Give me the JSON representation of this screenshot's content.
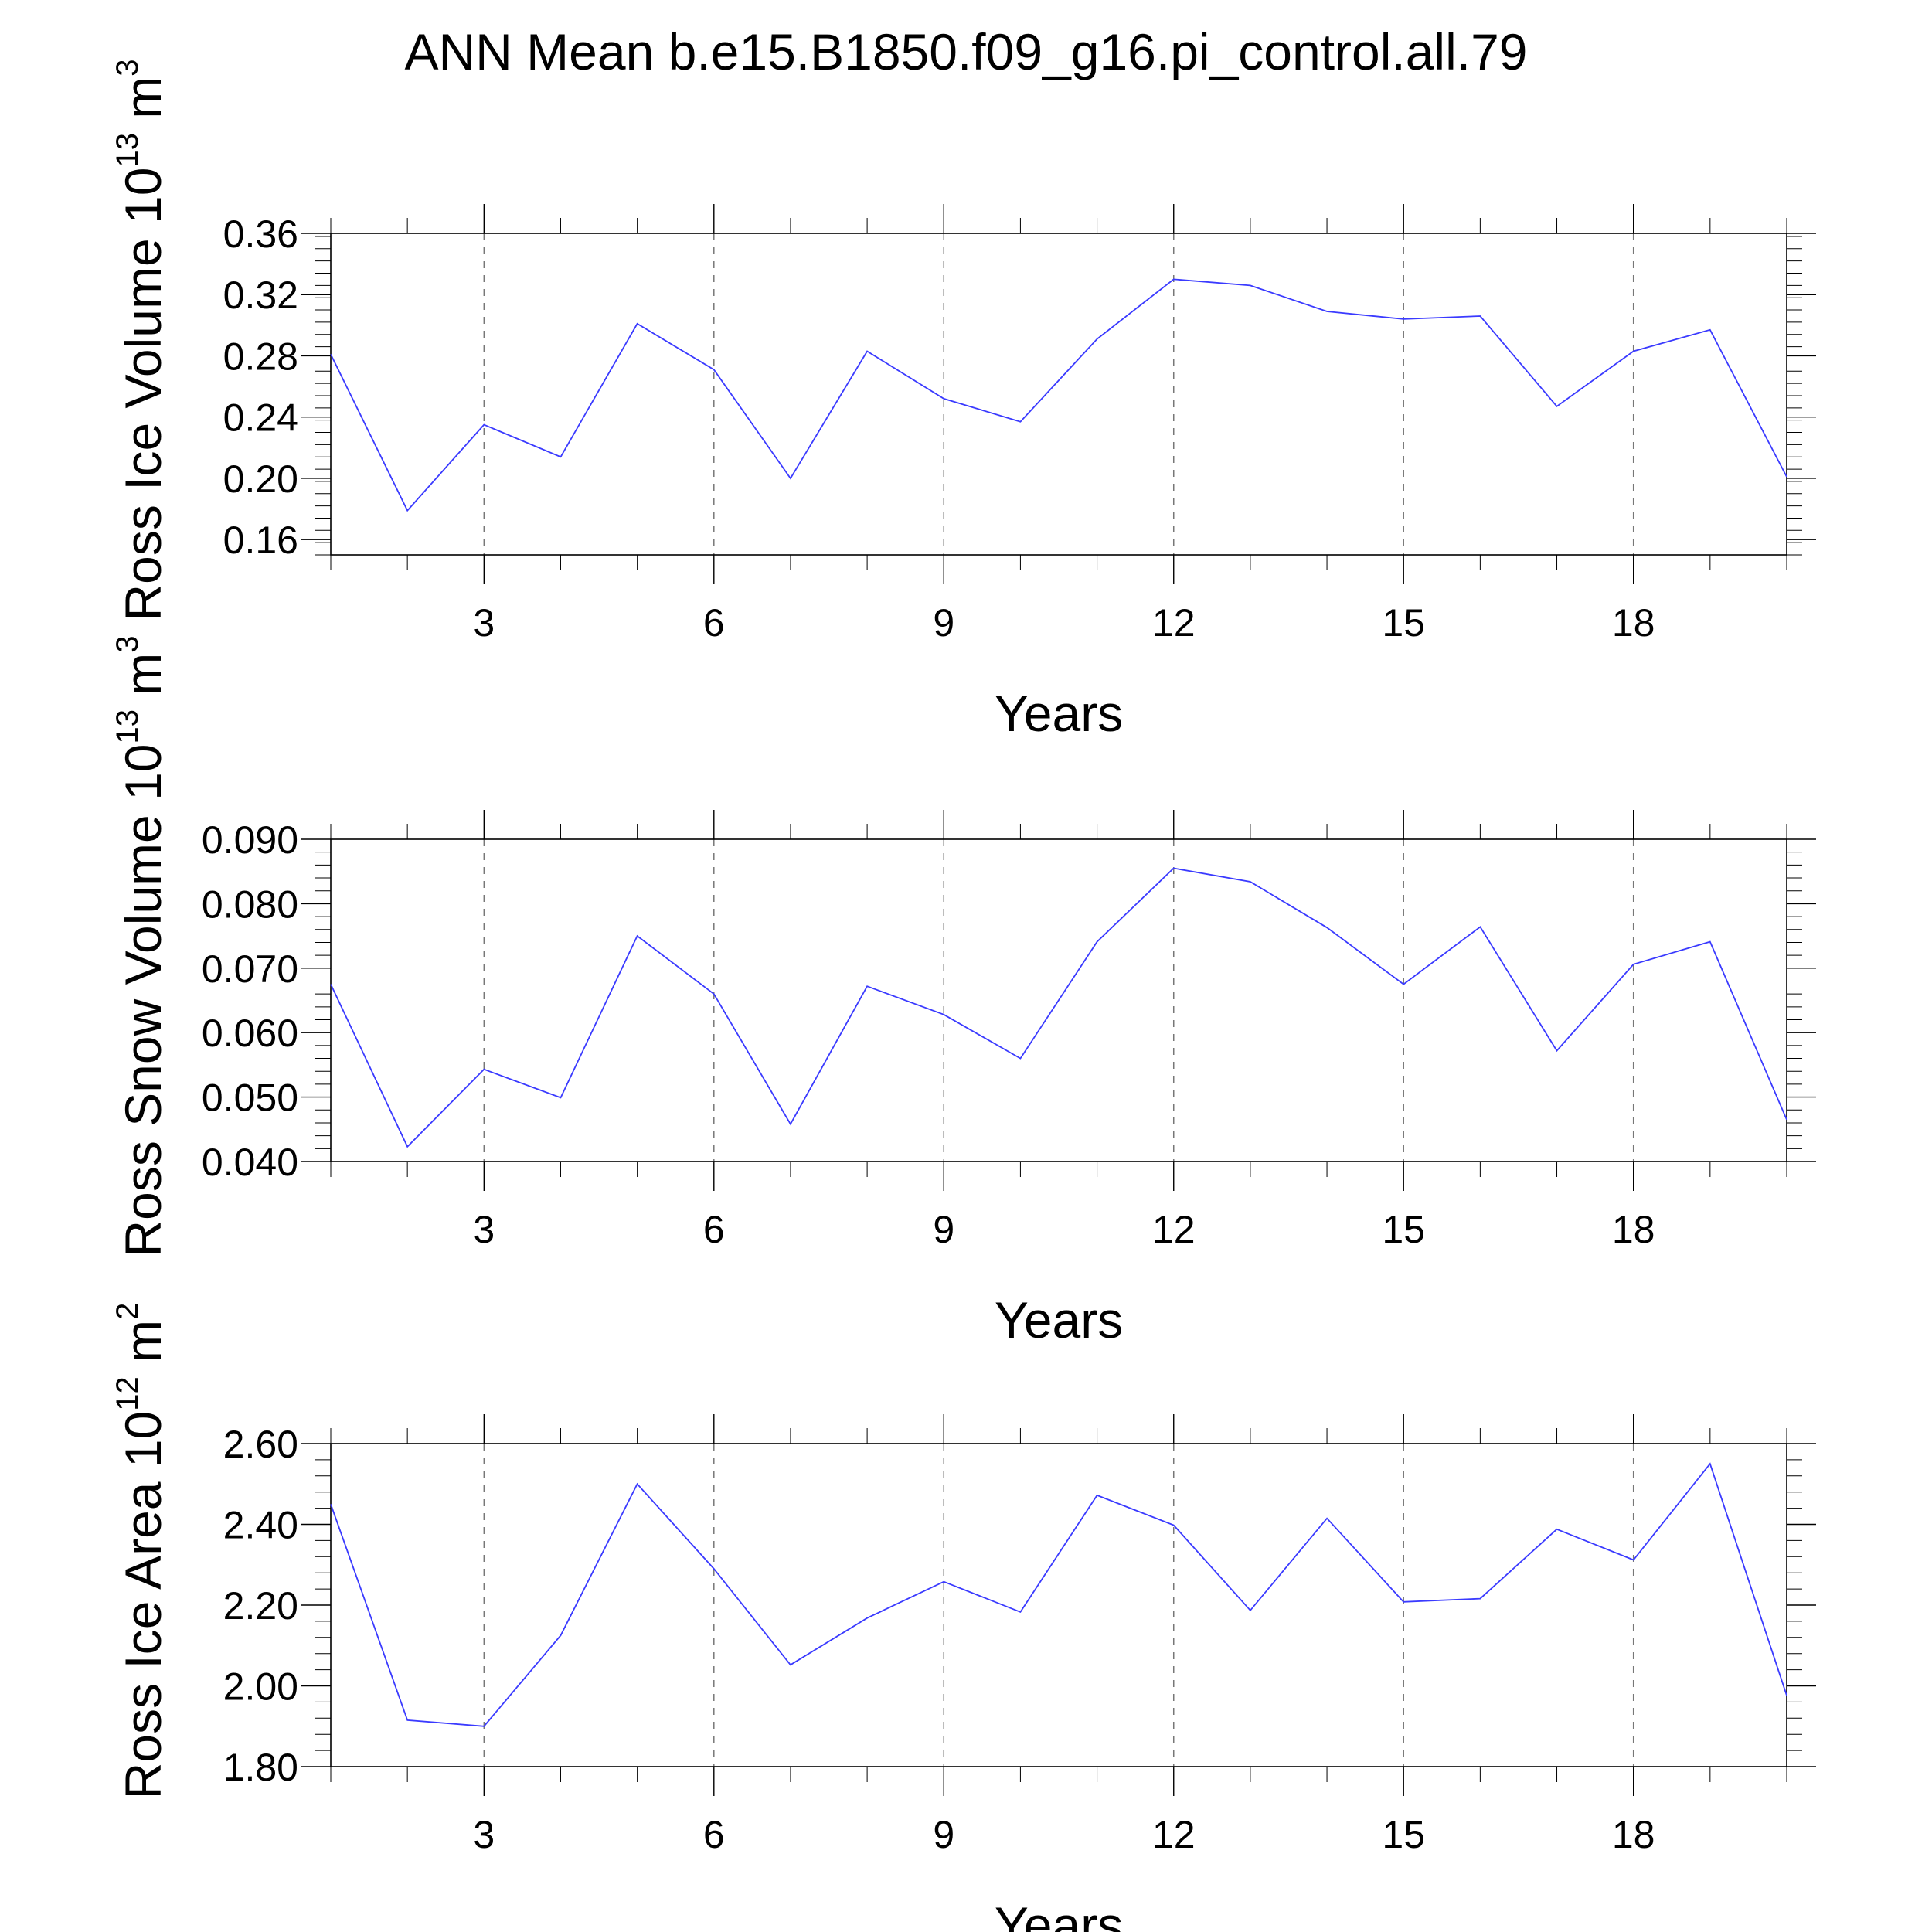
{
  "chart_data": [
    {
      "type": "line",
      "title": "ANN Mean b.e15.B1850.f09_g16.pi_control.all.79",
      "ylabel": "Ross Ice Volume 10",
      "yunit_exp": "13",
      "yunit_base": "m",
      "yunit_pow": "3",
      "xlabel": "Years",
      "xlim": [
        1,
        20
      ],
      "ylim": [
        0.15,
        0.36
      ],
      "yticks": [
        "0.16",
        "0.20",
        "0.24",
        "0.28",
        "0.32",
        "0.36"
      ],
      "xticks": [
        "3",
        "6",
        "9",
        "12",
        "15",
        "18"
      ],
      "x": [
        1,
        2,
        3,
        4,
        5,
        6,
        7,
        8,
        9,
        10,
        11,
        12,
        13,
        14,
        15,
        16,
        17,
        18,
        19,
        20
      ],
      "series": [
        {
          "name": "Ross Ice Volume",
          "color": "#3a3aff",
          "values": [
            0.281,
            0.179,
            0.235,
            0.214,
            0.301,
            0.271,
            0.2,
            0.283,
            0.252,
            0.237,
            0.291,
            0.33,
            0.326,
            0.309,
            0.304,
            0.306,
            0.247,
            0.283,
            0.297,
            0.201
          ]
        }
      ]
    },
    {
      "type": "line",
      "ylabel": "Ross Snow Volume 10",
      "yunit_exp": "13",
      "yunit_base": "m",
      "yunit_pow": "3",
      "xlabel": "Years",
      "xlim": [
        1,
        20
      ],
      "ylim": [
        0.04,
        0.09
      ],
      "yticks": [
        "0.040",
        "0.050",
        "0.060",
        "0.070",
        "0.080",
        "0.090"
      ],
      "xticks": [
        "3",
        "6",
        "9",
        "12",
        "15",
        "18"
      ],
      "x": [
        1,
        2,
        3,
        4,
        5,
        6,
        7,
        8,
        9,
        10,
        11,
        12,
        13,
        14,
        15,
        16,
        17,
        18,
        19,
        20
      ],
      "series": [
        {
          "name": "Ross Snow Volume",
          "color": "#3a3aff",
          "values": [
            0.0675,
            0.0423,
            0.0543,
            0.0499,
            0.075,
            0.066,
            0.0458,
            0.0672,
            0.0628,
            0.056,
            0.0741,
            0.0855,
            0.0834,
            0.0763,
            0.0675,
            0.0764,
            0.0572,
            0.0706,
            0.0741,
            0.0465
          ]
        }
      ]
    },
    {
      "type": "line",
      "ylabel": "Ross Ice Area 10",
      "yunit_exp": "12",
      "yunit_base": "m",
      "yunit_pow": "2",
      "xlabel": "Years",
      "xlim": [
        1,
        20
      ],
      "ylim": [
        1.8,
        2.6
      ],
      "yticks": [
        "1.80",
        "2.00",
        "2.20",
        "2.40",
        "2.60"
      ],
      "xticks": [
        "3",
        "6",
        "9",
        "12",
        "15",
        "18"
      ],
      "x": [
        1,
        2,
        3,
        4,
        5,
        6,
        7,
        8,
        9,
        10,
        11,
        12,
        13,
        14,
        15,
        16,
        17,
        18,
        19,
        20
      ],
      "series": [
        {
          "name": "Ross Ice Area",
          "color": "#3a3aff",
          "values": [
            2.45,
            1.915,
            1.9,
            2.125,
            2.5,
            2.29,
            2.052,
            2.168,
            2.258,
            2.183,
            2.472,
            2.398,
            2.187,
            2.415,
            2.208,
            2.216,
            2.388,
            2.312,
            2.55,
            1.976
          ]
        }
      ]
    }
  ]
}
